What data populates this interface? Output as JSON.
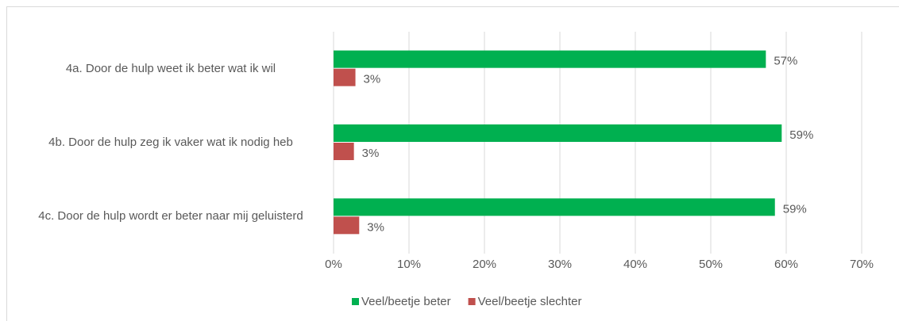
{
  "chart_data": {
    "type": "bar",
    "orientation": "horizontal",
    "categories": [
      "4a. Door de hulp weet ik beter wat ik wil",
      "4b. Door de hulp zeg ik vaker wat ik nodig heb",
      "4c. Door de hulp wordt er beter naar mij geluisterd"
    ],
    "series": [
      {
        "name": "Veel/beetje beter",
        "color": "#00b050",
        "values": [
          57.3,
          59.4,
          58.5
        ],
        "value_labels": [
          "57%",
          "59%",
          "59%"
        ]
      },
      {
        "name": "Veel/beetje slechter",
        "color": "#c0504d",
        "values": [
          2.9,
          2.7,
          3.4
        ],
        "value_labels": [
          "3%",
          "3%",
          "3%"
        ]
      }
    ],
    "xlim": [
      0,
      70
    ],
    "xticks": [
      {
        "value": 0,
        "label": "0%"
      },
      {
        "value": 10,
        "label": "10%"
      },
      {
        "value": 20,
        "label": "20%"
      },
      {
        "value": 30,
        "label": "30%"
      },
      {
        "value": 40,
        "label": "40%"
      },
      {
        "value": 50,
        "label": "50%"
      },
      {
        "value": 60,
        "label": "60%"
      },
      {
        "value": 70,
        "label": "70%"
      }
    ],
    "grid": true,
    "legend": "bottom"
  }
}
